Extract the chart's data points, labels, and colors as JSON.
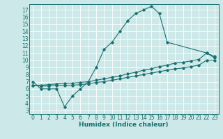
{
  "bg_color": "#cce8e8",
  "grid_color": "#ffffff",
  "line_color": "#1a7070",
  "line_width": 0.8,
  "marker": "D",
  "marker_size": 1.8,
  "xlabel": "Humidex (Indice chaleur)",
  "xlabel_fontsize": 6.5,
  "tick_fontsize": 5.5,
  "xlim": [
    -0.5,
    23.5
  ],
  "ylim": [
    2.5,
    17.8
  ],
  "xticks": [
    0,
    1,
    2,
    3,
    4,
    5,
    6,
    7,
    8,
    9,
    10,
    11,
    12,
    13,
    14,
    15,
    16,
    17,
    18,
    19,
    20,
    21,
    22,
    23
  ],
  "yticks": [
    3,
    4,
    5,
    6,
    7,
    8,
    9,
    10,
    11,
    12,
    13,
    14,
    15,
    16,
    17
  ],
  "line1_x": [
    0,
    1,
    2,
    3,
    4,
    5,
    6,
    7,
    8,
    9,
    10,
    11,
    12,
    13,
    14,
    15,
    16,
    17,
    22,
    23
  ],
  "line1_y": [
    7.0,
    6.0,
    6.0,
    6.0,
    3.5,
    5.0,
    6.0,
    7.0,
    9.0,
    11.5,
    12.5,
    14.0,
    15.5,
    16.5,
    17.0,
    17.5,
    16.5,
    12.5,
    11.0,
    10.5
  ],
  "line2_x": [
    0,
    1,
    2,
    3,
    4,
    5,
    6,
    7,
    8,
    9,
    10,
    11,
    12,
    13,
    14,
    15,
    16,
    17,
    18,
    19,
    20,
    21,
    22,
    23
  ],
  "line2_y": [
    6.5,
    6.5,
    6.6,
    6.7,
    6.8,
    6.8,
    6.9,
    7.0,
    7.2,
    7.4,
    7.6,
    7.8,
    8.1,
    8.3,
    8.6,
    8.8,
    9.1,
    9.3,
    9.6,
    9.7,
    9.9,
    10.1,
    11.0,
    10.3
  ],
  "line3_x": [
    0,
    1,
    2,
    3,
    4,
    5,
    6,
    7,
    8,
    9,
    10,
    11,
    12,
    13,
    14,
    15,
    16,
    17,
    18,
    19,
    20,
    21,
    22,
    23
  ],
  "line3_y": [
    6.5,
    6.4,
    6.4,
    6.5,
    6.5,
    6.5,
    6.6,
    6.7,
    6.9,
    7.0,
    7.2,
    7.4,
    7.6,
    7.8,
    8.0,
    8.2,
    8.4,
    8.6,
    8.8,
    8.9,
    9.1,
    9.3,
    10.0,
    10.0
  ]
}
